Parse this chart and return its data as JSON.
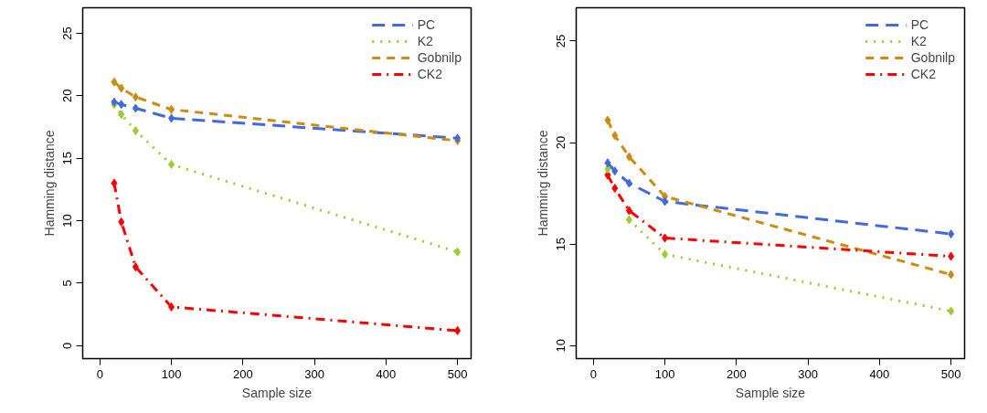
{
  "chart_data": [
    {
      "type": "line",
      "xlabel": "Sample size",
      "ylabel": "Hamming distance",
      "x": [
        20,
        30,
        50,
        100,
        500
      ],
      "xlim": [
        -24,
        519
      ],
      "xticks": [
        0,
        100,
        200,
        300,
        400,
        500
      ],
      "ylim": [
        -1.04,
        27.04
      ],
      "yticks": [
        0,
        5,
        10,
        15,
        20,
        25
      ],
      "grid": false,
      "legend": "top right",
      "marker": "diamond",
      "series": [
        {
          "name": "PC",
          "color": "#4169e1",
          "line_style": "longdash",
          "values": [
            19.5,
            19.3,
            19.0,
            18.2,
            16.6
          ]
        },
        {
          "name": "K2",
          "color": "#9acd32",
          "line_style": "dotted",
          "values": [
            19.3,
            18.5,
            17.2,
            14.5,
            7.5
          ]
        },
        {
          "name": "Gobnilp",
          "color": "#cd8c10",
          "line_style": "dashed",
          "values": [
            21.1,
            20.6,
            19.9,
            18.9,
            16.4
          ]
        },
        {
          "name": "CK2",
          "color": "#ff0000",
          "line_style": "dotdash",
          "values": [
            13.0,
            9.9,
            6.3,
            3.1,
            1.2
          ]
        }
      ]
    },
    {
      "type": "line",
      "xlabel": "Sample size",
      "ylabel": "Hamming distance",
      "x": [
        20,
        30,
        50,
        100,
        500
      ],
      "xlim": [
        -24,
        519
      ],
      "xticks": [
        0,
        100,
        200,
        300,
        400,
        500
      ],
      "ylim": [
        9.36,
        26.64
      ],
      "yticks": [
        10,
        15,
        20,
        25
      ],
      "grid": false,
      "legend": "top right",
      "marker": "diamond",
      "series": [
        {
          "name": "PC",
          "color": "#4169e1",
          "line_style": "longdash",
          "values": [
            19.0,
            18.6,
            18.0,
            17.1,
            15.5
          ]
        },
        {
          "name": "K2",
          "color": "#9acd32",
          "line_style": "dotted",
          "values": [
            18.7,
            null,
            16.2,
            14.5,
            11.7
          ]
        },
        {
          "name": "Gobnilp",
          "color": "#cd8c10",
          "line_style": "dashed",
          "values": [
            21.1,
            20.35,
            19.3,
            17.35,
            13.5
          ]
        },
        {
          "name": "CK2",
          "color": "#ff0000",
          "line_style": "dotdash",
          "values": [
            18.4,
            17.75,
            16.65,
            15.3,
            14.4
          ]
        }
      ]
    }
  ]
}
